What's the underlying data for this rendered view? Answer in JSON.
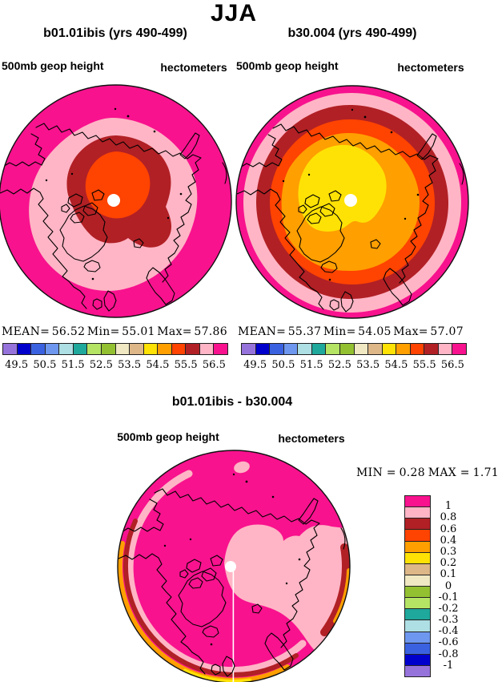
{
  "title": "JJA",
  "colors": {
    "magenta": "#f8128e",
    "pink": "#ffb5c5",
    "dark_red": "#b12025",
    "red_orange": "#ff4300",
    "orange": "#ff9f00",
    "yellow": "#ffe205",
    "white": "#ffffff",
    "coast": "#000000",
    "scale": [
      "#9673db",
      "#0000cd",
      "#3a62e0",
      "#6e97ef",
      "#aedfe4",
      "#1fa89c",
      "#b5e465",
      "#93c031",
      "#f0e8c2",
      "#ddb787",
      "#ffe205",
      "#ff9f00",
      "#ff4300",
      "#b12025",
      "#ffb5c5",
      "#f8128e"
    ]
  },
  "panels": {
    "left": {
      "title": "b01.01ibis (yrs 490-499)",
      "field_label": "500mb geop height",
      "units_label": "hectometers",
      "stats": {
        "mean_label": "MEAN=",
        "mean": "56.52",
        "min_label": "Min=",
        "min": "55.01",
        "max_label": "Max=",
        "max": "57.86"
      },
      "colorbar_ticks": [
        "49.5",
        "50.5",
        "51.5",
        "52.5",
        "53.5",
        "54.5",
        "55.5",
        "56.5"
      ]
    },
    "right": {
      "title": "b30.004 (yrs 490-499)",
      "field_label": "500mb geop height",
      "units_label": "hectometers",
      "stats": {
        "mean_label": "MEAN=",
        "mean": "55.37",
        "min_label": "Min=",
        "min": "54.05",
        "max_label": "Max=",
        "max": "57.07"
      },
      "colorbar_ticks": [
        "49.5",
        "50.5",
        "51.5",
        "52.5",
        "53.5",
        "54.5",
        "55.5",
        "56.5"
      ]
    },
    "diff": {
      "title": "b01.01ibis - b30.004",
      "field_label": "500mb geop height",
      "units_label": "hectometers",
      "stats": {
        "min_label": "MIN =",
        "min": "0.28",
        "max_label": "MAX =",
        "max": "1.71"
      },
      "colorbar_ticks": [
        "1",
        "0.8",
        "0.6",
        "0.4",
        "0.3",
        "0.2",
        "0.1",
        "0",
        "-0.1",
        "-0.2",
        "-0.3",
        "-0.4",
        "-0.6",
        "-0.8",
        "-1"
      ]
    }
  },
  "chart_data": [
    {
      "type": "heatmap",
      "subtype": "north-polar-stereographic-filled-contour-map",
      "title": "b01.01ibis (yrs 490-499)",
      "season": "JJA",
      "variable": "500mb geop height",
      "units": "hectometers",
      "stats": {
        "mean": 56.52,
        "min": 55.01,
        "max": 57.86
      },
      "contour_interval": 0.5,
      "level_range": [
        49.0,
        57.0
      ],
      "labeled_levels": [
        49.5,
        50.5,
        51.5,
        52.5,
        53.5,
        54.5,
        55.5,
        56.5
      ],
      "palette": [
        "#9673db",
        "#0000cd",
        "#3a62e0",
        "#6e97ef",
        "#aedfe4",
        "#1fa89c",
        "#b5e465",
        "#93c031",
        "#f0e8c2",
        "#ddb787",
        "#ffe205",
        "#ff9f00",
        "#ff4300",
        "#b12025",
        "#ffb5c5",
        "#f8128e"
      ],
      "rings_outer_to_center": [
        "magenta >56.5",
        "pink 56.0-56.5",
        "dark-red 55.5-56.0",
        "red-orange 55.0-55.5 (minimum over pole)"
      ],
      "legend_position": "below",
      "pole_marker": "white dot at pole"
    },
    {
      "type": "heatmap",
      "subtype": "north-polar-stereographic-filled-contour-map",
      "title": "b30.004 (yrs 490-499)",
      "season": "JJA",
      "variable": "500mb geop height",
      "units": "hectometers",
      "stats": {
        "mean": 55.37,
        "min": 54.05,
        "max": 57.07
      },
      "contour_interval": 0.5,
      "level_range": [
        49.0,
        57.0
      ],
      "labeled_levels": [
        49.5,
        50.5,
        51.5,
        52.5,
        53.5,
        54.5,
        55.5,
        56.5
      ],
      "palette": [
        "#9673db",
        "#0000cd",
        "#3a62e0",
        "#6e97ef",
        "#aedfe4",
        "#1fa89c",
        "#b5e465",
        "#93c031",
        "#f0e8c2",
        "#ddb787",
        "#ffe205",
        "#ff9f00",
        "#ff4300",
        "#b12025",
        "#ffb5c5",
        "#f8128e"
      ],
      "rings_outer_to_center": [
        "magenta 56.5-57.0",
        "pink 56.0-56.5",
        "dark-red 55.5-56.0",
        "red-orange 55.0-55.5",
        "orange 54.5-55.0",
        "yellow 54.0-54.5 (minimum over pole)"
      ],
      "legend_position": "below",
      "pole_marker": "white dot at pole"
    },
    {
      "type": "heatmap",
      "subtype": "north-polar-stereographic-filled-contour-map",
      "title": "b01.01ibis - b30.004",
      "season": "JJA",
      "variable": "500mb geop height difference",
      "units": "hectometers",
      "stats": {
        "min": 0.28,
        "max": 1.71
      },
      "labeled_levels": [
        1,
        0.8,
        0.6,
        0.4,
        0.3,
        0.2,
        0.1,
        0,
        -0.1,
        -0.2,
        -0.3,
        -0.4,
        -0.6,
        -0.8,
        -1
      ],
      "palette_top_to_bottom": [
        "#f8128e",
        "#ffb5c5",
        "#b12025",
        "#ff4300",
        "#ff9f00",
        "#ffe205",
        "#ddb787",
        "#f0e8c2",
        "#93c031",
        "#b5e465",
        "#1fa89c",
        "#aedfe4",
        "#6e97ef",
        "#3a62e0",
        "#0000cd",
        "#9673db"
      ],
      "regions": [
        "magenta >1 over most of the domain",
        "pink 0.8-1 lobe east of pole reaching right edge and along lower/left rim",
        "dark-red 0.6-0.8 bands at left, lower and right rim",
        "orange 0.3-0.4 slivers at rim",
        "yellow 0.2-0.3 sliver at bottom rim (minimum 0.28)"
      ],
      "legend_position": "right",
      "pole_marker": "white dot at pole with white meridian line"
    }
  ]
}
